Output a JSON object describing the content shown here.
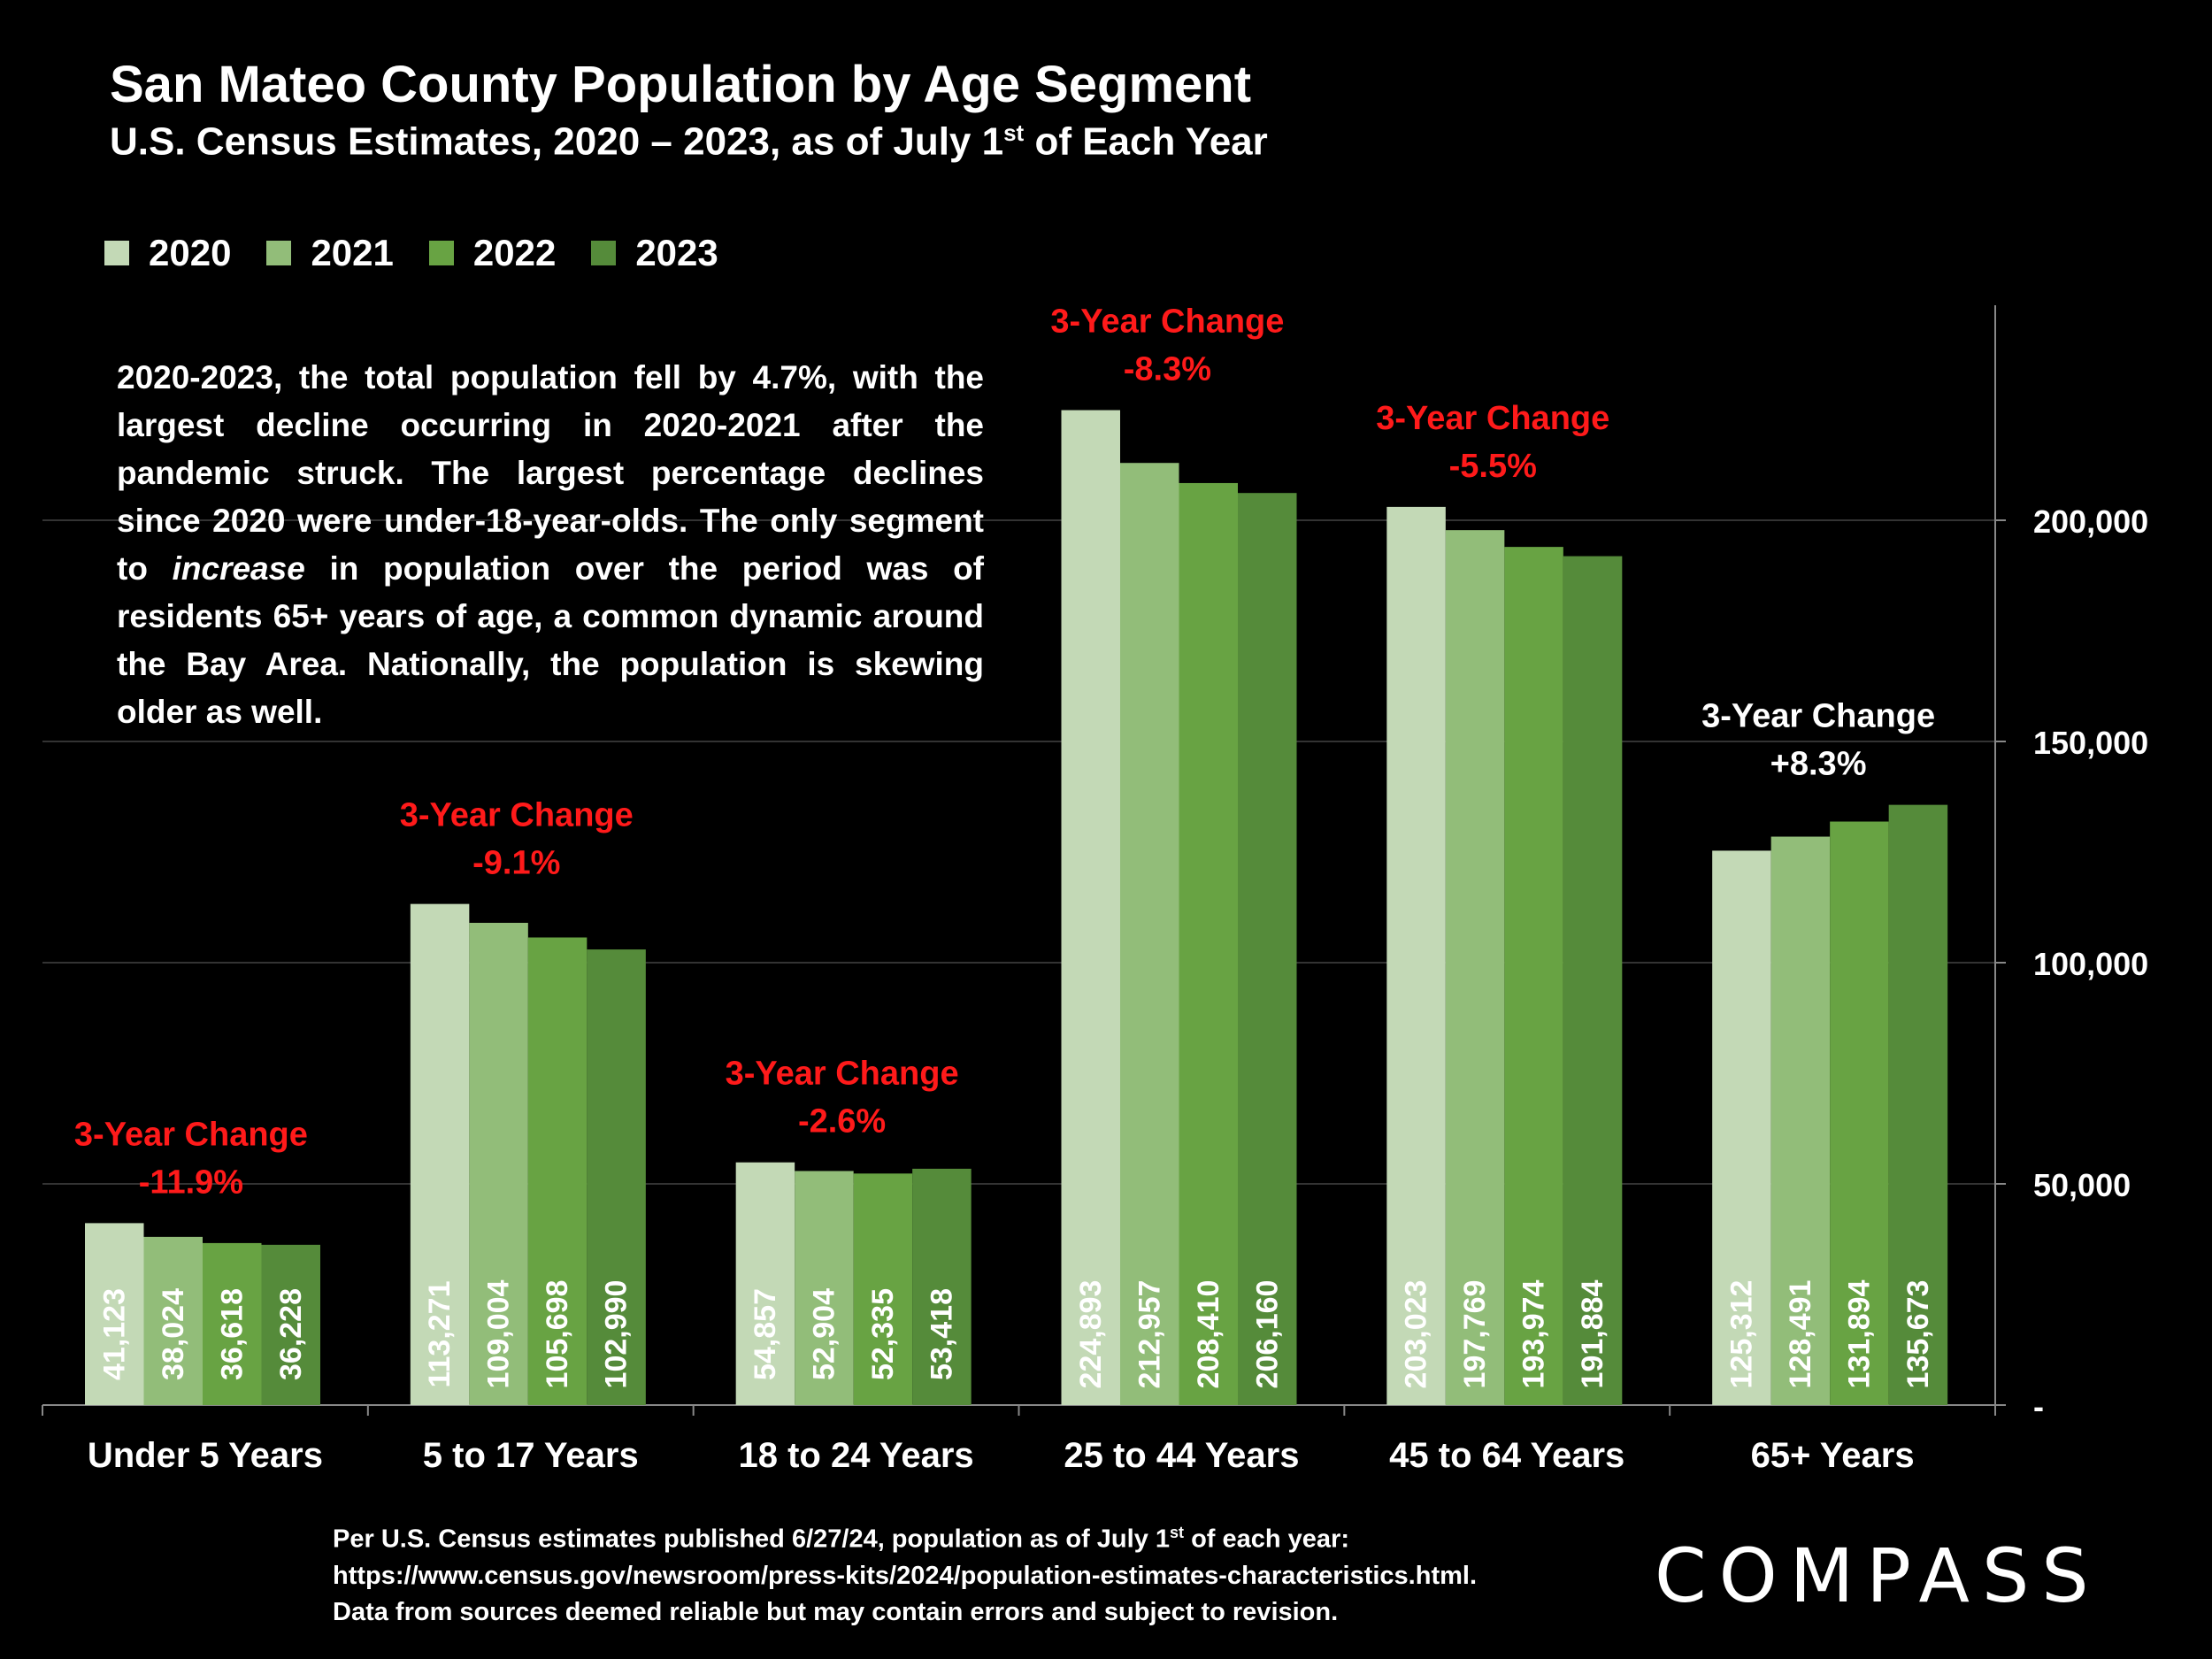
{
  "title": "San Mateo County Population by Age Segment",
  "subtitle_main": "U.S. Census Estimates, 2020 – 2023, as of July 1",
  "subtitle_sup": "st",
  "subtitle_end": " of Each Year",
  "note": {
    "part1": "2020-2023, the total population fell by 4.7%, with the largest decline occurring in 2020-2021 after the pandemic struck. The largest percentage declines since 2020 were under-18-year-olds. The only segment to ",
    "emphasis": "increase",
    "part2": " in population over the period was of residents 65+ years of age, a common dynamic around the Bay Area. Nationally, the population is skewing older as well."
  },
  "footnote": {
    "line1_a": "Per U.S. Census estimates published 6/27/24, population as of July 1",
    "line1_sup": "st",
    "line1_b": " of each year:",
    "line2": "https://www.census.gov/newsroom/press-kits/2024/population-estimates-characteristics.html.",
    "line3": "Data from sources deemed reliable but may contain errors and subject to revision."
  },
  "logo_text": "COMPASS",
  "colors": {
    "background": "#000000",
    "series": [
      "#c3d9b6",
      "#92bd79",
      "#68a343",
      "#558b3a"
    ],
    "change_negative": "#ff1a1a",
    "change_positive": "#ffffff",
    "gridline": "#333333",
    "axis": "#888888"
  },
  "chart_data": {
    "type": "bar",
    "categories": [
      "Under 5 Years",
      "5 to 17 Years",
      "18 to 24 Years",
      "25 to 44 Years",
      "45 to 64 Years",
      "65+ Years"
    ],
    "series": [
      {
        "name": "2020",
        "values": [
          41123,
          113271,
          54857,
          224893,
          203023,
          125312
        ]
      },
      {
        "name": "2021",
        "values": [
          38024,
          109004,
          52904,
          212957,
          197769,
          128491
        ]
      },
      {
        "name": "2022",
        "values": [
          36618,
          105698,
          52335,
          208410,
          193974,
          131894
        ]
      },
      {
        "name": "2023",
        "values": [
          36228,
          102990,
          53418,
          206160,
          191884,
          135673
        ]
      }
    ],
    "data_labels": [
      [
        "41,123",
        "113,271",
        "54,857",
        "224,893",
        "203,023",
        "125,312"
      ],
      [
        "38,024",
        "109,004",
        "52,904",
        "212,957",
        "197,769",
        "128,491"
      ],
      [
        "36,618",
        "105,698",
        "52,335",
        "208,410",
        "193,974",
        "131,894"
      ],
      [
        "36,228",
        "102,990",
        "53,418",
        "206,160",
        "191,884",
        "135,673"
      ]
    ],
    "annotations": [
      {
        "label": "3-Year Change",
        "value": "-11.9%",
        "sign": "negative"
      },
      {
        "label": "3-Year Change",
        "value": "-9.1%",
        "sign": "negative"
      },
      {
        "label": "3-Year Change",
        "value": "-2.6%",
        "sign": "negative"
      },
      {
        "label": "3-Year Change",
        "value": "-8.3%",
        "sign": "negative"
      },
      {
        "label": "3-Year Change",
        "value": "-5.5%",
        "sign": "negative"
      },
      {
        "label": "3-Year Change",
        "value": "+8.3%",
        "sign": "positive"
      }
    ],
    "y_ticks": [
      {
        "value": 0,
        "label": "-"
      },
      {
        "value": 50000,
        "label": "50,000"
      },
      {
        "value": 100000,
        "label": "100,000"
      },
      {
        "value": 150000,
        "label": "150,000"
      },
      {
        "value": 200000,
        "label": "200,000"
      }
    ],
    "ylim": [
      0,
      250000
    ],
    "y_axis_position": "right",
    "legend_position": "top-left",
    "grid": true
  }
}
